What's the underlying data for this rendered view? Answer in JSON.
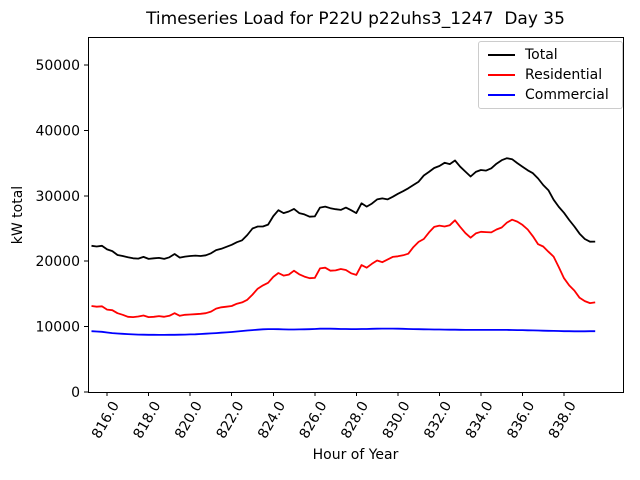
{
  "chart_data": {
    "type": "line",
    "title": "Timeseries Load for P22U p22uhs3_1247  Day 35",
    "xlabel": "Hour of Year",
    "ylabel": "kW total",
    "grid": false,
    "legend_position": "upper right",
    "xlim": [
      815.08,
      840.84
    ],
    "ylim": [
      0,
      54280
    ],
    "xticks": {
      "values": [
        816,
        818,
        820,
        822,
        824,
        826,
        828,
        830,
        832,
        834,
        836,
        838
      ],
      "labels": [
        "816.0",
        "818.0",
        "820.0",
        "822.0",
        "824.0",
        "826.0",
        "828.0",
        "830.0",
        "832.0",
        "834.0",
        "836.0",
        "838.0"
      ],
      "rotation_deg": 60
    },
    "yticks": {
      "values": [
        0,
        10000,
        20000,
        30000,
        40000,
        50000
      ],
      "labels": [
        "0",
        "10000",
        "20000",
        "30000",
        "40000",
        "50000"
      ]
    },
    "x": {
      "start": 815.25,
      "step": 0.25,
      "count": 98,
      "units": "hour of year"
    },
    "series": [
      {
        "name": "Total",
        "color": "#000000",
        "values": [
          22350,
          22250,
          22350,
          21800,
          21550,
          20950,
          20800,
          20600,
          20450,
          20400,
          20650,
          20350,
          20450,
          20500,
          20350,
          20600,
          21100,
          20550,
          20700,
          20800,
          20850,
          20800,
          20900,
          21200,
          21700,
          21900,
          22200,
          22500,
          22900,
          23200,
          24000,
          25000,
          25300,
          25300,
          25600,
          26900,
          27800,
          27350,
          27600,
          28000,
          27350,
          27150,
          26800,
          26850,
          28200,
          28350,
          28100,
          27950,
          27850,
          28200,
          27800,
          27350,
          28850,
          28350,
          28800,
          29450,
          29600,
          29450,
          29850,
          30300,
          30700,
          31150,
          31650,
          32150,
          33100,
          33650,
          34250,
          34550,
          35050,
          34850,
          35400,
          34450,
          33700,
          32950,
          33650,
          33950,
          33850,
          34200,
          34900,
          35450,
          35750,
          35600,
          35000,
          34450,
          33900,
          33450,
          32650,
          31650,
          30850,
          29400,
          28300,
          27400,
          26300,
          25300,
          24200,
          23400,
          22980,
          23000
        ]
      },
      {
        "name": "Residential",
        "color": "#ff0000",
        "values": [
          13150,
          13050,
          13100,
          12600,
          12500,
          12050,
          11800,
          11500,
          11450,
          11550,
          11700,
          11450,
          11500,
          11600,
          11500,
          11650,
          12050,
          11650,
          11800,
          11850,
          11900,
          11950,
          12050,
          12300,
          12750,
          12950,
          13050,
          13150,
          13500,
          13700,
          14100,
          14900,
          15800,
          16300,
          16700,
          17600,
          18200,
          17800,
          17950,
          18550,
          18000,
          17650,
          17400,
          17450,
          18900,
          19000,
          18550,
          18600,
          18800,
          18650,
          18150,
          17900,
          19400,
          19000,
          19600,
          20100,
          19850,
          20250,
          20650,
          20750,
          20900,
          21150,
          22150,
          22950,
          23400,
          24400,
          25250,
          25450,
          25300,
          25500,
          26250,
          25250,
          24300,
          23600,
          24250,
          24500,
          24450,
          24400,
          24850,
          25150,
          25900,
          26350,
          26050,
          25550,
          24850,
          23800,
          22600,
          22250,
          21450,
          20700,
          19100,
          17400,
          16300,
          15500,
          14400,
          13900,
          13600,
          13700
        ]
      },
      {
        "name": "Commercial",
        "color": "#0000ff",
        "values": [
          9300,
          9250,
          9200,
          9100,
          9000,
          8950,
          8900,
          8850,
          8800,
          8780,
          8760,
          8750,
          8740,
          8730,
          8730,
          8740,
          8750,
          8760,
          8780,
          8800,
          8830,
          8870,
          8910,
          8960,
          9010,
          9060,
          9120,
          9180,
          9250,
          9320,
          9400,
          9470,
          9530,
          9580,
          9610,
          9620,
          9600,
          9570,
          9560,
          9560,
          9570,
          9580,
          9600,
          9630,
          9680,
          9700,
          9680,
          9660,
          9640,
          9630,
          9620,
          9620,
          9630,
          9640,
          9660,
          9680,
          9690,
          9700,
          9690,
          9680,
          9660,
          9640,
          9620,
          9600,
          9580,
          9570,
          9560,
          9550,
          9540,
          9530,
          9520,
          9510,
          9500,
          9500,
          9500,
          9500,
          9500,
          9500,
          9500,
          9500,
          9490,
          9480,
          9470,
          9460,
          9440,
          9420,
          9400,
          9380,
          9360,
          9340,
          9320,
          9300,
          9290,
          9280,
          9280,
          9280,
          9290,
          9300
        ]
      }
    ]
  }
}
